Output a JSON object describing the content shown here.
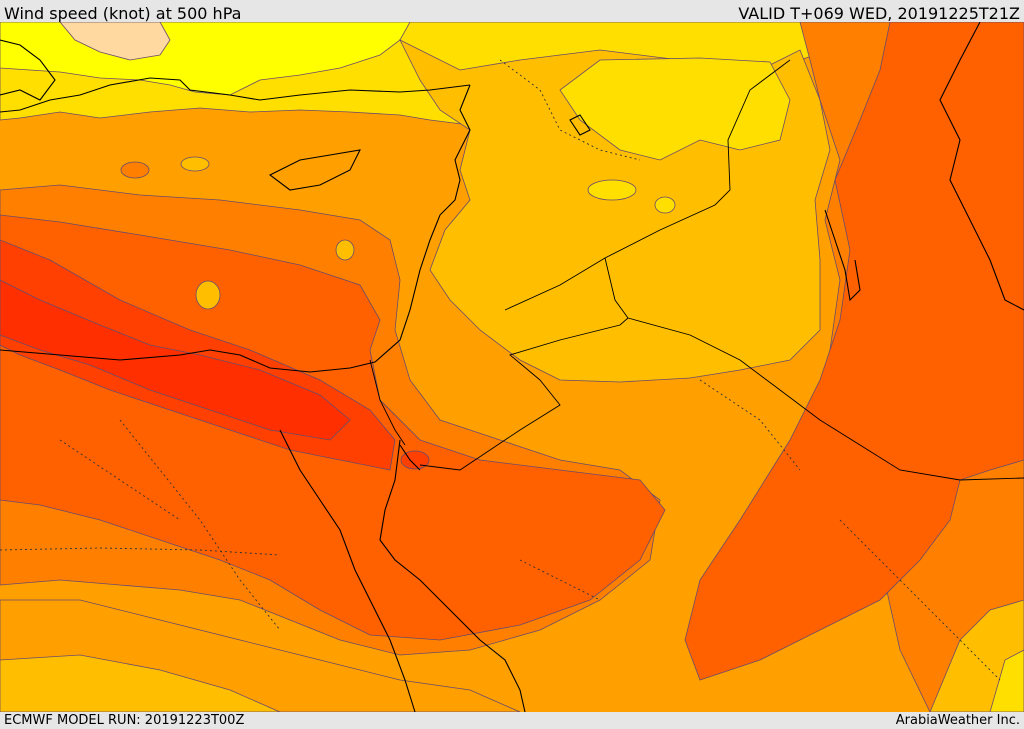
{
  "header": {
    "title": "Wind speed (knot) at 500 hPa",
    "valid": "VALID T+069 WED, 20191225T21Z"
  },
  "footer": {
    "model_run": "ECMWF MODEL RUN: 20191223T00Z",
    "credit": "ArabiaWeather Inc."
  },
  "colors": {
    "band_15_20": "#ffff00",
    "band_20_25": "#ffdf00",
    "band_25_30": "#ffbf00",
    "band_30_35": "#ff9f00",
    "band_35_40": "#ff8000",
    "band_40_45": "#ff6000",
    "band_45_50": "#ff4000",
    "band_light": "#ffd9a0",
    "contour": "#6a4b6a",
    "coastline": "#000000"
  }
}
